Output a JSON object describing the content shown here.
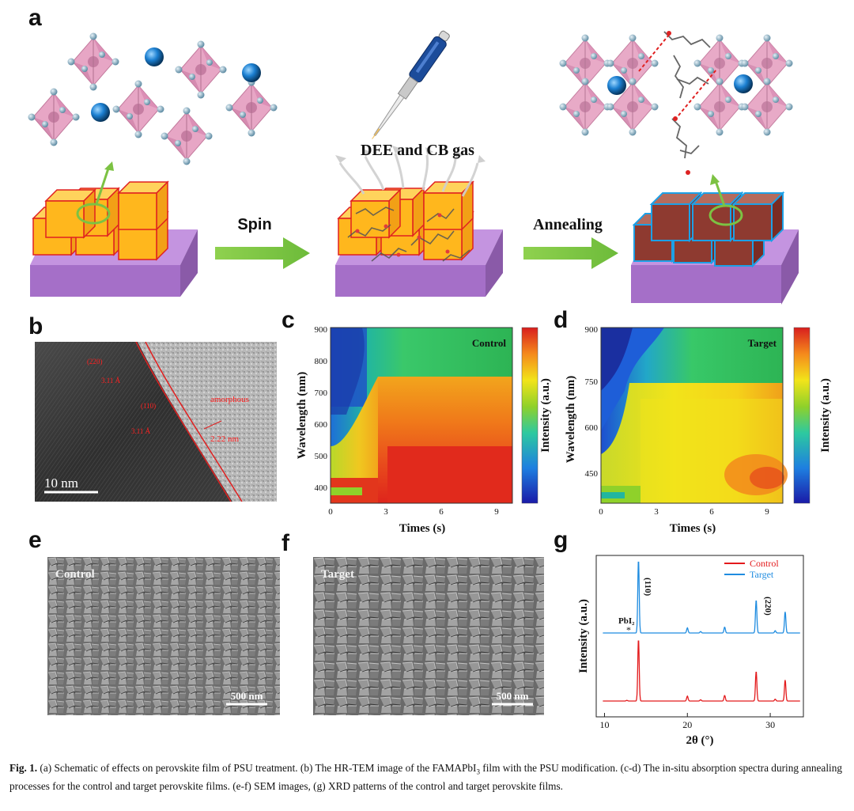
{
  "panels": {
    "a": {
      "letter": "a",
      "step1_label": "Spin",
      "step2_label": "Annealing",
      "gas_label": "DEE and CB gas"
    },
    "b": {
      "letter": "b",
      "plane1": "(220)",
      "d1": "3.11 Å",
      "plane2": "(110)",
      "d2": "3.11 Å",
      "amorphous_label": "amorphous",
      "thickness": "2.22 nm",
      "scale_bar": "10 nm"
    },
    "c": {
      "letter": "c",
      "inset": "Control",
      "ylabel": "Wavelength (nm)",
      "xlabel": "Times (s)",
      "colorbar_label": "Intensity (a.u.)",
      "yticks": [
        "900",
        "800",
        "700",
        "600",
        "500",
        "400"
      ],
      "xticks": [
        "0",
        "3",
        "6",
        "9"
      ]
    },
    "d": {
      "letter": "d",
      "inset": "Target",
      "ylabel": "Wavelength (nm)",
      "xlabel": "Times (s)",
      "colorbar_label": "Intensity (a.u.)",
      "yticks": [
        "900",
        "750",
        "600",
        "450"
      ],
      "xticks": [
        "0",
        "3",
        "6",
        "9"
      ]
    },
    "e": {
      "letter": "e",
      "inset": "Control",
      "scale_bar": "500 nm"
    },
    "f": {
      "letter": "f",
      "inset": "Target",
      "scale_bar": "500 nm"
    },
    "g": {
      "letter": "g",
      "legend": [
        "Control",
        "Target"
      ],
      "ylabel": "Intensity (a.u.)",
      "xlabel": "2θ (°)",
      "xticks": [
        "10",
        "20",
        "30"
      ],
      "ann_pbi2": "PbI₂",
      "ann_110": "(110)",
      "ann_220": "(220)",
      "ann_star": "*"
    }
  },
  "chart_data": {
    "type": "line",
    "xlabel": "2θ (°)",
    "ylabel": "Intensity (a.u.)",
    "xlim": [
      9,
      34
    ],
    "legend_position": "top-right",
    "colors": {
      "Control": "#e31a1c",
      "Target": "#1f8ce0"
    },
    "series": [
      {
        "name": "Control",
        "peaks": [
          [
            12.7,
            0.01
          ],
          [
            14.1,
            1.0
          ],
          [
            20.0,
            0.08
          ],
          [
            24.5,
            0.09
          ],
          [
            28.3,
            0.48
          ],
          [
            31.8,
            0.34
          ],
          [
            30.6,
            0.03
          ],
          [
            21.6,
            0.02
          ]
        ]
      },
      {
        "name": "Target",
        "peaks": [
          [
            12.7,
            0.0
          ],
          [
            14.1,
            1.0
          ],
          [
            20.0,
            0.07
          ],
          [
            24.5,
            0.08
          ],
          [
            28.3,
            0.45
          ],
          [
            31.8,
            0.29
          ],
          [
            30.6,
            0.03
          ],
          [
            21.6,
            0.02
          ]
        ]
      }
    ]
  },
  "caption": {
    "label": "Fig. 1.",
    "text_a": " (a) Schematic of effects on perovskite film of PSU treatment. (b) The HR-TEM image of the FAMAPbI",
    "sub": "3",
    "text_b": " film with the PSU modification. (c-d) The in-situ absorption spectra during annealing processes for the control and target perovskite films. (e-f) SEM images, (g) XRD patterns of the control and target perovskite films."
  }
}
